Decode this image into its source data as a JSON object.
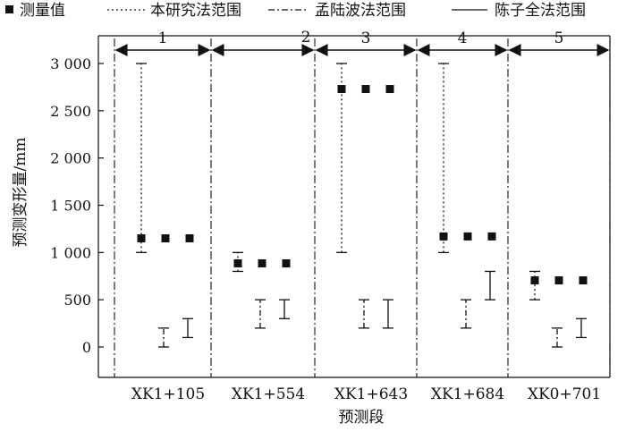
{
  "chart_data": {
    "type": "scatter",
    "xlabel": "预测段",
    "ylabel": "预测变形量/mm",
    "ylim": [
      -250,
      3250
    ],
    "yticks": [
      0,
      500,
      1000,
      1500,
      2000,
      2500,
      3000
    ],
    "ytick_labels": [
      "0",
      "500",
      "1 000",
      "1 500",
      "2 000",
      "2 500",
      "3 000"
    ],
    "categories": [
      "XK1+105",
      "XK1+554",
      "XK1+643",
      "XK1+684",
      "XK0+701"
    ],
    "segment_labels": [
      "1",
      "2",
      "3",
      "4",
      "5"
    ],
    "legend": {
      "position": "top",
      "items": [
        {
          "label": "测量值",
          "style": "square-marker"
        },
        {
          "label": "本研究法范围",
          "style": "dotted"
        },
        {
          "label": "孟陆波法范围",
          "style": "dash-dot"
        },
        {
          "label": "陈子全法范围",
          "style": "solid"
        }
      ]
    },
    "measured": [
      1150,
      885,
      2730,
      1170,
      705
    ],
    "ranges": [
      {
        "name": "本研究法范围",
        "style": "dotted",
        "values": [
          [
            1000,
            3000
          ],
          [
            800,
            1000
          ],
          [
            1000,
            3000
          ],
          [
            1000,
            3000
          ],
          [
            500,
            800
          ]
        ]
      },
      {
        "name": "孟陆波法范围",
        "style": "dash-dot",
        "values": [
          [
            0,
            200
          ],
          [
            200,
            500
          ],
          [
            200,
            500
          ],
          [
            200,
            500
          ],
          [
            0,
            200
          ]
        ]
      },
      {
        "name": "陈子全法范围",
        "style": "solid",
        "values": [
          [
            100,
            300
          ],
          [
            300,
            500
          ],
          [
            200,
            500
          ],
          [
            500,
            800
          ],
          [
            100,
            300
          ]
        ]
      }
    ],
    "colors": {
      "marker": "#111111",
      "line": "#111111",
      "background": "#ffffff"
    }
  }
}
